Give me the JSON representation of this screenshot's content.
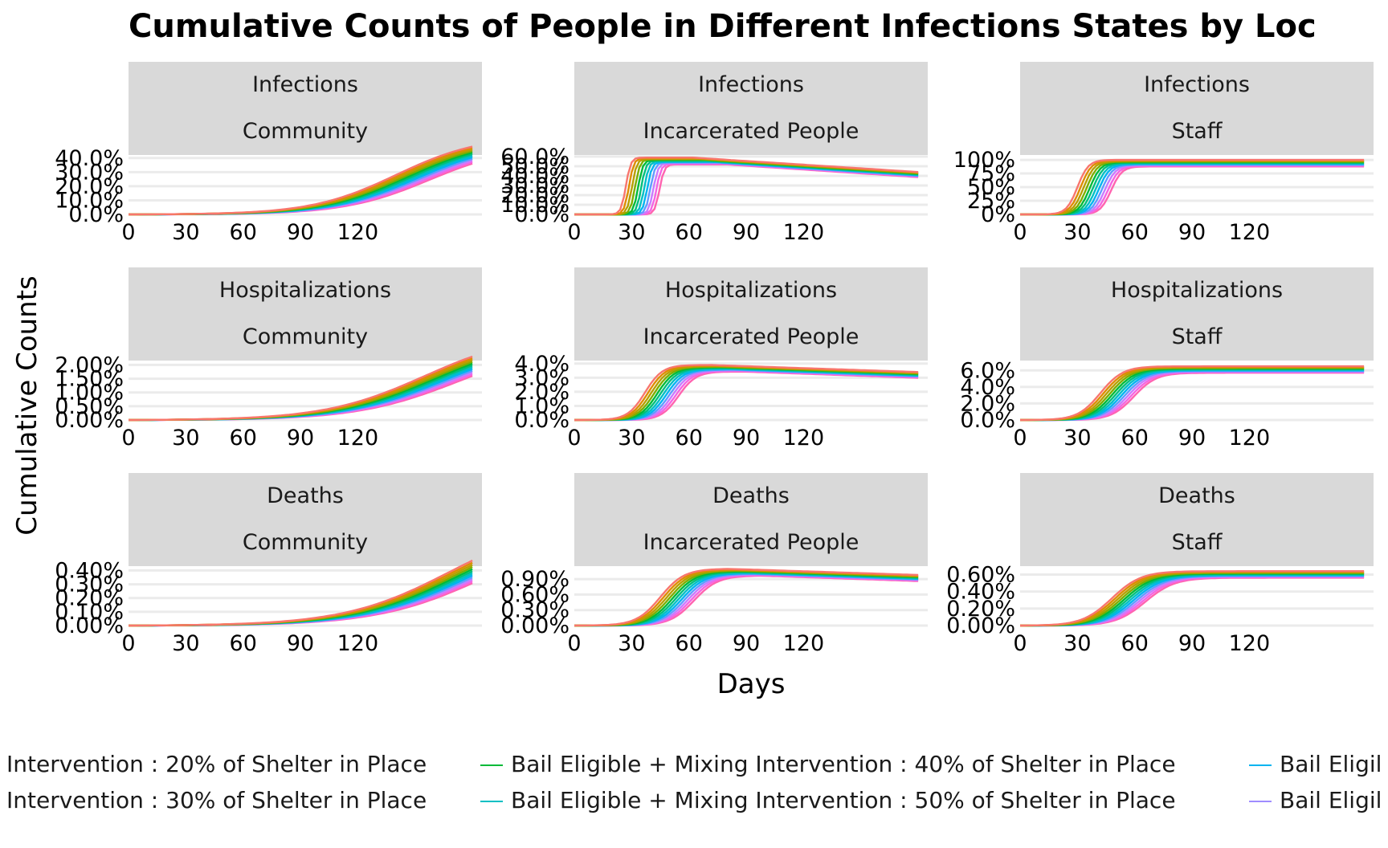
{
  "title": "Cumulative Counts of People in Different Infections States by Loc",
  "xlabel": "Days",
  "ylabel": "Cumulative Counts",
  "colors": [
    "#F8766D",
    "#DE8C00",
    "#B79F00",
    "#7CAE00",
    "#00BA38",
    "#00BF7D",
    "#00BFC4",
    "#00B4F0",
    "#619CFF",
    "#C77CFF",
    "#F564E3",
    "#FF64B0"
  ],
  "legend": {
    "items": [
      {
        "label": "Intervention : 20% of Shelter in Place",
        "color": "",
        "col": 0,
        "row": 0
      },
      {
        "label": "Intervention : 30% of Shelter in Place",
        "color": "",
        "col": 0,
        "row": 1
      },
      {
        "label": "Bail Eligible + Mixing Intervention : 40% of Shelter in Place",
        "color": "#00BA38",
        "col": 1,
        "row": 0
      },
      {
        "label": "Bail Eligible + Mixing Intervention : 50% of Shelter in Place",
        "color": "#00BFC4",
        "col": 1,
        "row": 1
      },
      {
        "label": "Bail Eligil",
        "color": "#00B4F0",
        "col": 2,
        "row": 0
      },
      {
        "label": "Bail Eligil",
        "color": "#9F8CFF",
        "col": 2,
        "row": 1
      }
    ]
  },
  "chart_data": [
    {
      "type": "line",
      "row": "Infections",
      "col": "Community",
      "xticks": [
        0,
        30,
        60,
        90,
        120
      ],
      "xlim": [
        0,
        185
      ],
      "yticks": [
        "0.0%",
        "10.0%",
        "20.0%",
        "30.0%",
        "40.0%"
      ],
      "yvals": [
        0,
        10,
        20,
        30,
        40
      ],
      "ylim": [
        0,
        41
      ],
      "curve": {
        "shape": "logistic",
        "t0": 140,
        "k": 0.045,
        "max": 56,
        "tend": 180
      }
    },
    {
      "type": "line",
      "row": "Infections",
      "col": "Incarcerated People",
      "xticks": [
        0,
        30,
        60,
        90,
        120
      ],
      "xlim": [
        0,
        185
      ],
      "yticks": [
        "0.0%",
        "10.0%",
        "20.0%",
        "30.0%",
        "40.0%",
        "50.0%",
        "60.0%"
      ],
      "yvals": [
        0,
        10,
        20,
        30,
        40,
        50,
        60
      ],
      "ylim": [
        0,
        60
      ],
      "curve": {
        "shape": "peak",
        "t0": 27,
        "k": 0.8,
        "max": 59,
        "end": 44,
        "tend": 180
      }
    },
    {
      "type": "line",
      "row": "Infections",
      "col": "Staff",
      "xticks": [
        0,
        30,
        60,
        90,
        120
      ],
      "xlim": [
        0,
        185
      ],
      "yticks": [
        "0%",
        "25%",
        "50%",
        "75%",
        "100%"
      ],
      "yvals": [
        0,
        25,
        50,
        75,
        100
      ],
      "ylim": [
        0,
        106
      ],
      "curve": {
        "shape": "logistic",
        "t0": 30,
        "k": 0.35,
        "max": 100,
        "tend": 180
      }
    },
    {
      "type": "line",
      "row": "Hospitalizations",
      "col": "Community",
      "xticks": [
        0,
        30,
        60,
        90,
        120
      ],
      "xlim": [
        0,
        185
      ],
      "yticks": [
        "0.00%",
        "0.50%",
        "1.00%",
        "1.50%",
        "2.00%"
      ],
      "yvals": [
        0,
        0.5,
        1.0,
        1.5,
        2.0
      ],
      "ylim": [
        0,
        2.1
      ],
      "curve": {
        "shape": "logistic",
        "t0": 155,
        "k": 0.038,
        "max": 3.2,
        "tend": 180
      }
    },
    {
      "type": "line",
      "row": "Hospitalizations",
      "col": "Incarcerated People",
      "xticks": [
        0,
        30,
        60,
        90,
        120
      ],
      "xlim": [
        0,
        185
      ],
      "yticks": [
        "0.0%",
        "1.0%",
        "2.0%",
        "3.0%",
        "4.0%"
      ],
      "yvals": [
        0,
        1,
        2,
        3,
        4
      ],
      "ylim": [
        0,
        4.1
      ],
      "curve": {
        "shape": "peak",
        "t0": 37,
        "k": 0.22,
        "max": 3.9,
        "end": 3.4,
        "tend": 180
      }
    },
    {
      "type": "line",
      "row": "Hospitalizations",
      "col": "Staff",
      "xticks": [
        0,
        30,
        60,
        90,
        120
      ],
      "xlim": [
        0,
        185
      ],
      "yticks": [
        "0.0%",
        "2.0%",
        "4.0%",
        "6.0%"
      ],
      "yvals": [
        0,
        2,
        4,
        6
      ],
      "ylim": [
        0,
        7.0
      ],
      "curve": {
        "shape": "logistic",
        "t0": 42,
        "k": 0.17,
        "max": 6.5,
        "tend": 180
      }
    },
    {
      "type": "line",
      "row": "Deaths",
      "col": "Community",
      "xticks": [
        0,
        30,
        60,
        90,
        120
      ],
      "xlim": [
        0,
        185
      ],
      "yticks": [
        "0.00%",
        "0.10%",
        "0.20%",
        "0.30%",
        "0.40%"
      ],
      "yvals": [
        0,
        0.1,
        0.2,
        0.3,
        0.4
      ],
      "ylim": [
        0,
        0.42
      ],
      "curve": {
        "shape": "logistic",
        "t0": 168,
        "k": 0.036,
        "max": 0.78,
        "tend": 180
      }
    },
    {
      "type": "line",
      "row": "Deaths",
      "col": "Incarcerated People",
      "xticks": [
        0,
        30,
        60,
        90,
        120
      ],
      "xlim": [
        0,
        185
      ],
      "yticks": [
        "0.00%",
        "0.30%",
        "0.60%",
        "0.90%"
      ],
      "yvals": [
        0,
        0.3,
        0.6,
        0.9
      ],
      "ylim": [
        0,
        1.12
      ],
      "curve": {
        "shape": "peak",
        "t0": 45,
        "k": 0.16,
        "max": 1.1,
        "end": 0.98,
        "tend": 180
      }
    },
    {
      "type": "line",
      "row": "Deaths",
      "col": "Staff",
      "xticks": [
        0,
        30,
        60,
        90,
        120
      ],
      "xlim": [
        0,
        185
      ],
      "yticks": [
        "0.00%",
        "0.20%",
        "0.40%",
        "0.60%"
      ],
      "yvals": [
        0,
        0.2,
        0.4,
        0.6
      ],
      "ylim": [
        0,
        0.68
      ],
      "curve": {
        "shape": "logistic",
        "t0": 48,
        "k": 0.13,
        "max": 0.64,
        "tend": 180
      }
    }
  ]
}
